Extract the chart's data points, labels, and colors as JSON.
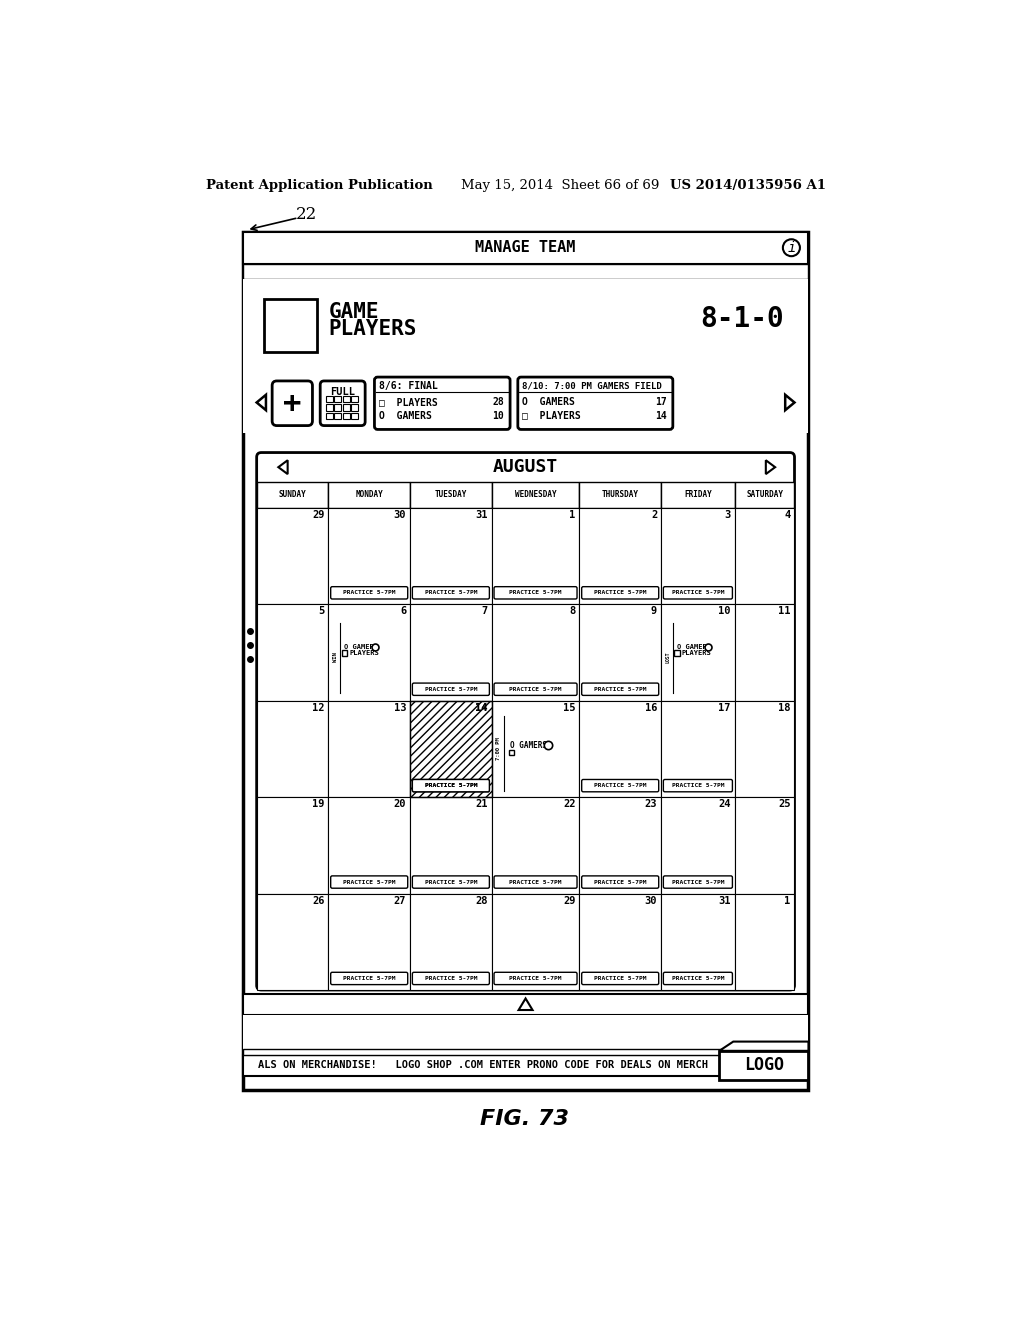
{
  "patent_header_left": "Patent Application Publication",
  "patent_header_mid": "May 15, 2014  Sheet 66 of 69",
  "patent_header_right": "US 2014/0135956 A1",
  "fig_label": "FIG. 73",
  "device_label": "22",
  "title_bar": "MANAGE TEAM",
  "record": "8-1-0",
  "game1_title": "8/6: FINAL",
  "game1_row1": "□  PLAYERS",
  "game1_val1": "28",
  "game1_row2": "O  GAMERS",
  "game1_val2": "10",
  "game2_title": "8/10: 7:00 PM GAMERS FIELD",
  "game2_row1": "O  GAMERS",
  "game2_val1": "17",
  "game2_row2": "□  PLAYERS",
  "game2_val2": "14",
  "calendar_month": "AUGUST",
  "days_of_week": [
    "SUNDAY",
    "MONDAY",
    "TUESDAY",
    "WEDNESDAY",
    "THURSDAY",
    "FRIDAY",
    "SATURDAY"
  ],
  "ad_text": "ALS ON MERCHANDISE!   LOGO SHOP .COM ENTER PRONO CODE FOR DEALS ON MERCH",
  "logo_text": "LOGO",
  "plus_text": "+",
  "full_text": "FULL"
}
